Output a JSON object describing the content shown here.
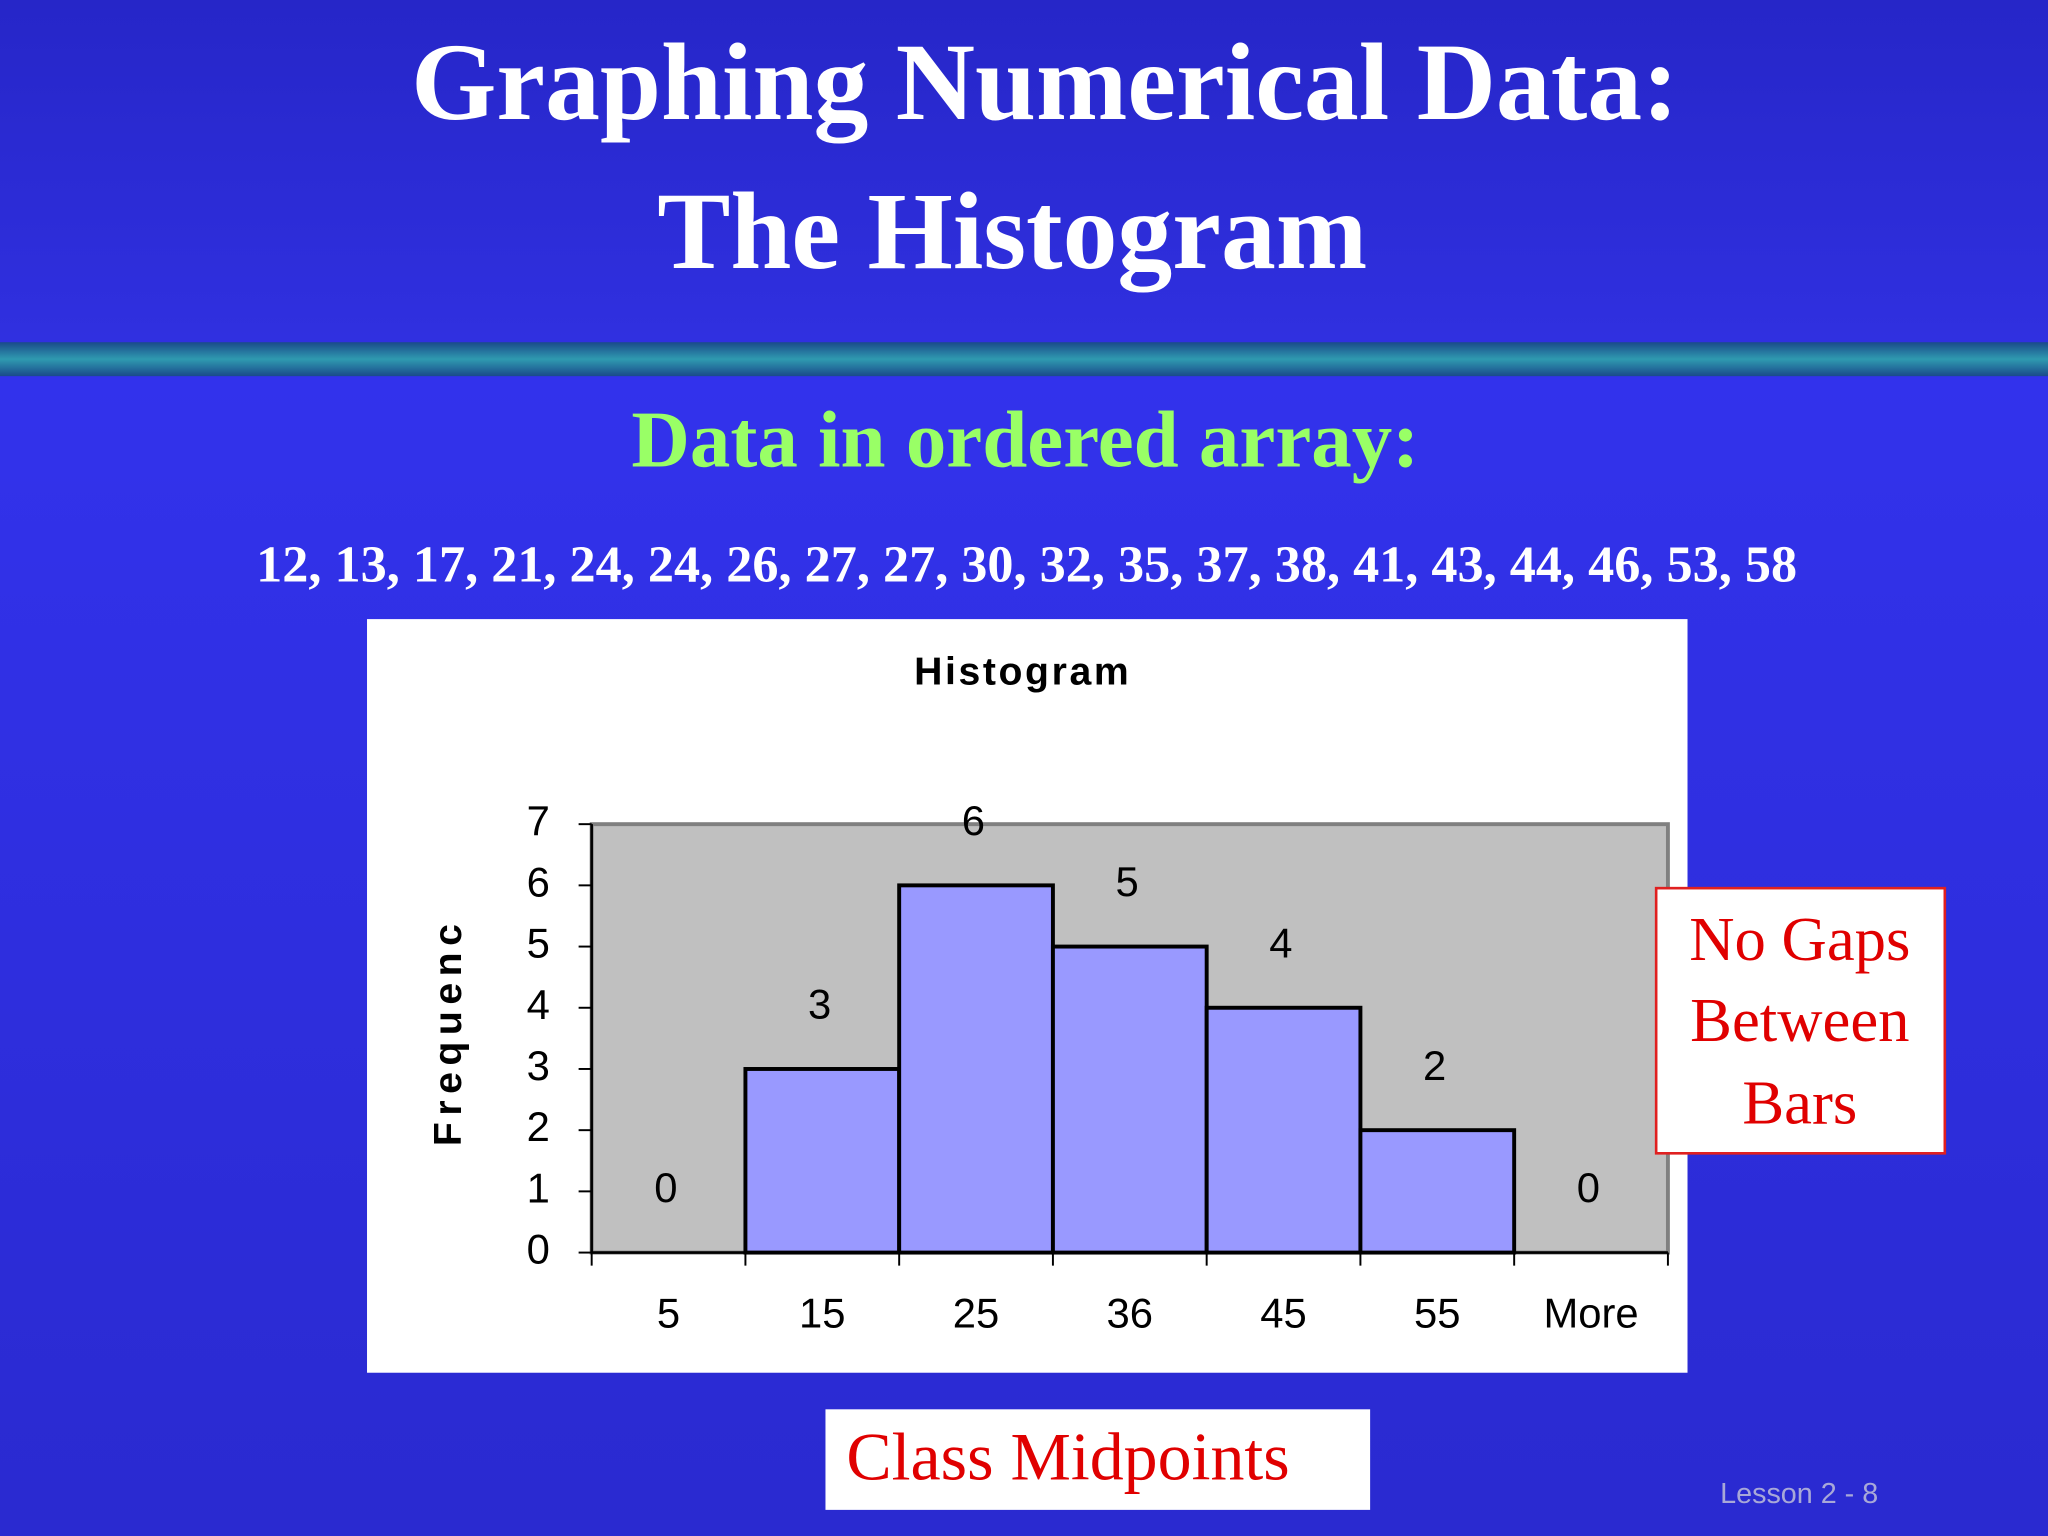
{
  "slide": {
    "title_lines": [
      "Graphing Numerical Data:",
      "The Histogram"
    ],
    "subtitle": "Data in ordered array:",
    "data_line": "12, 13, 17, 21, 24, 24, 26, 27, 27, 30, 32, 35, 37, 38, 41, 43, 44, 46, 53, 58",
    "gap_note_lines": [
      "No Gaps",
      "Between",
      "Bars"
    ],
    "x_note": "Class Midpoints",
    "footer": "Lesson 2 - 8"
  },
  "chart_data": {
    "type": "bar",
    "title": "Histogram",
    "y_label": "Frequenc",
    "categories": [
      "5",
      "15",
      "25",
      "36",
      "45",
      "55",
      "More"
    ],
    "values": [
      0,
      3,
      6,
      5,
      4,
      2,
      0
    ],
    "color": "#9999ff",
    "plot_background": "#c0c0c0",
    "ylim": [
      0,
      7
    ],
    "yticks": [
      0,
      1,
      2,
      3,
      4,
      5,
      6,
      7
    ],
    "grid": false
  }
}
